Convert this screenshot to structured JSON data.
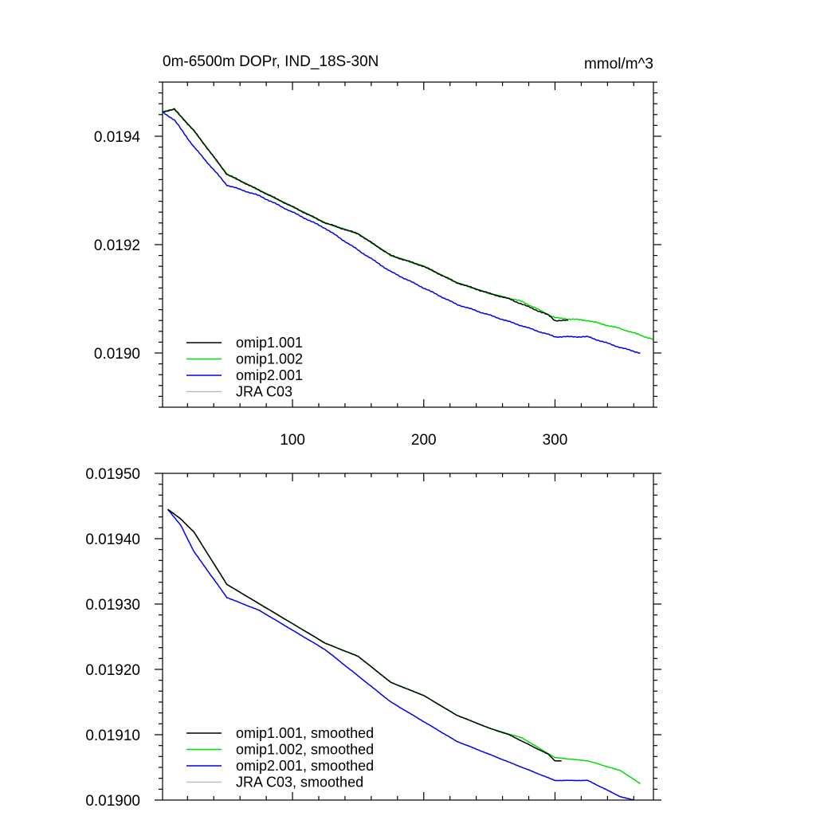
{
  "chart_data": [
    {
      "type": "line",
      "title": "0m-6500m DOPr, IND_18S-30N",
      "units": "mmol/m^3",
      "xlim": [
        1,
        375
      ],
      "ylim": [
        0.0189,
        0.0195
      ],
      "x_ticks": [
        100,
        200,
        300
      ],
      "x_tick_labels": [
        "100",
        "200",
        "300"
      ],
      "y_ticks": [
        0.019,
        0.0192,
        0.0194
      ],
      "y_tick_labels": [
        "0.0190",
        "0.0192",
        "0.0194"
      ],
      "grid": false,
      "legend": "lower-left",
      "colors": {
        "omip1.001": "#000000",
        "omip1.002": "#00dd00",
        "omip2.001": "#0000ee",
        "JRA C03": "#bbbbbb"
      },
      "series": [
        {
          "name": "omip1.001",
          "color": "#000000",
          "x": [
            1,
            10,
            25,
            50,
            75,
            100,
            125,
            150,
            175,
            200,
            225,
            250,
            265,
            275,
            285,
            295,
            300,
            310
          ],
          "y": [
            0.019445,
            0.01945,
            0.01941,
            0.01933,
            0.0193,
            0.01927,
            0.01924,
            0.01922,
            0.01918,
            0.01916,
            0.01913,
            0.01911,
            0.0191,
            0.01909,
            0.01908,
            0.01907,
            0.01906,
            0.01906
          ]
        },
        {
          "name": "omip1.002",
          "color": "#00dd00",
          "x": [
            1,
            10,
            25,
            50,
            75,
            100,
            125,
            150,
            175,
            200,
            225,
            250,
            275,
            300,
            325,
            350,
            375
          ],
          "y": [
            0.019445,
            0.01945,
            0.01941,
            0.01933,
            0.0193,
            0.01927,
            0.01924,
            0.01922,
            0.01918,
            0.01916,
            0.01913,
            0.01911,
            0.019095,
            0.019065,
            0.01906,
            0.019045,
            0.019025
          ]
        },
        {
          "name": "omip2.001",
          "color": "#0000ee",
          "x": [
            1,
            10,
            25,
            50,
            75,
            100,
            125,
            150,
            175,
            200,
            225,
            250,
            275,
            300,
            325,
            350,
            365
          ],
          "y": [
            0.019445,
            0.01943,
            0.01938,
            0.01931,
            0.01929,
            0.01926,
            0.01923,
            0.01919,
            0.01915,
            0.01912,
            0.01909,
            0.01907,
            0.01905,
            0.01903,
            0.01903,
            0.01901,
            0.019
          ]
        },
        {
          "name": "JRA C03",
          "color": "#bbbbbb",
          "x": [],
          "y": []
        }
      ]
    },
    {
      "type": "line",
      "xlim": [
        1,
        375
      ],
      "ylim": [
        0.019,
        0.0195
      ],
      "x_ticks": [
        100,
        200,
        300
      ],
      "y_ticks": [
        0.019,
        0.0191,
        0.0192,
        0.0193,
        0.0194,
        0.0195
      ],
      "y_tick_labels": [
        "0.01900",
        "0.01910",
        "0.01920",
        "0.01930",
        "0.01940",
        "0.01950"
      ],
      "grid": false,
      "legend": "lower-left",
      "colors": {
        "omip1.001, smoothed": "#000000",
        "omip1.002, smoothed": "#00dd00",
        "omip2.001, smoothed": "#0000ee",
        "JRA C03, smoothed": "#bbbbbb"
      },
      "series": [
        {
          "name": "omip1.001, smoothed",
          "color": "#000000",
          "x": [
            5,
            15,
            25,
            50,
            75,
            100,
            125,
            150,
            175,
            200,
            225,
            250,
            265,
            275,
            285,
            295,
            300,
            305
          ],
          "y": [
            0.019445,
            0.01943,
            0.01941,
            0.01933,
            0.0193,
            0.01927,
            0.01924,
            0.01922,
            0.01918,
            0.01916,
            0.01913,
            0.01911,
            0.0191,
            0.01909,
            0.01908,
            0.01907,
            0.01906,
            0.01906
          ]
        },
        {
          "name": "omip1.002, smoothed",
          "color": "#00dd00",
          "x": [
            5,
            15,
            25,
            50,
            75,
            100,
            125,
            150,
            175,
            200,
            225,
            250,
            275,
            300,
            325,
            350,
            365
          ],
          "y": [
            0.019445,
            0.01943,
            0.01941,
            0.01933,
            0.0193,
            0.01927,
            0.01924,
            0.01922,
            0.01918,
            0.01916,
            0.01913,
            0.01911,
            0.019095,
            0.019065,
            0.01906,
            0.019045,
            0.019025
          ]
        },
        {
          "name": "omip2.001, smoothed",
          "color": "#0000ee",
          "x": [
            5,
            15,
            25,
            50,
            75,
            100,
            125,
            150,
            175,
            200,
            225,
            250,
            275,
            300,
            325,
            350,
            360
          ],
          "y": [
            0.019445,
            0.01942,
            0.01938,
            0.01931,
            0.01929,
            0.01926,
            0.01923,
            0.01919,
            0.01915,
            0.01912,
            0.01909,
            0.01907,
            0.01905,
            0.01903,
            0.01903,
            0.019005,
            0.019
          ]
        },
        {
          "name": "JRA C03, smoothed",
          "color": "#bbbbbb",
          "x": [],
          "y": []
        }
      ]
    }
  ]
}
